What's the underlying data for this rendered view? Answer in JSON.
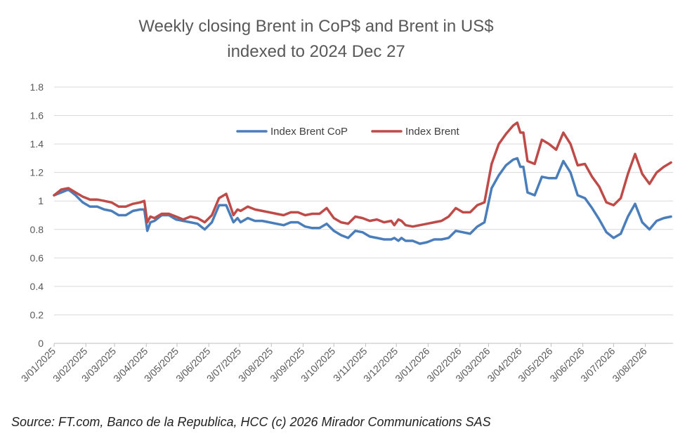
{
  "chart_data": {
    "type": "line",
    "title_lines": [
      "Weekly closing Brent in CoP$ and Brent in US$",
      "indexed to 2024 Dec 27"
    ],
    "xlabel": "",
    "ylabel": "",
    "ylim": [
      0,
      1.8
    ],
    "y_ticks": [
      "0",
      "0.2",
      "0.4",
      "0.6",
      "0.8",
      "1",
      "1.2",
      "1.4",
      "1.6",
      "1.8"
    ],
    "x_tick_labels": [
      "3/01/2025",
      "3/02/2025",
      "3/03/2025",
      "3/04/2025",
      "3/05/2025",
      "3/06/2025",
      "3/07/2025",
      "3/08/2025",
      "3/09/2025",
      "3/10/2025",
      "3/11/2025",
      "3/12/2025",
      "3/01/2026",
      "3/02/2026",
      "3/03/2026",
      "3/04/2026",
      "3/05/2026",
      "3/06/2026",
      "3/07/2026",
      "3/08/2026"
    ],
    "x_range": [
      "2025-01-03",
      "2026-08-30"
    ],
    "grid": "horizontal",
    "legend_position": "top-center",
    "series": [
      {
        "name": "Index Brent CoP",
        "color": "#4a7ebb",
        "points": [
          [
            "2025-01-03",
            1.04
          ],
          [
            "2025-01-10",
            1.06
          ],
          [
            "2025-01-17",
            1.08
          ],
          [
            "2025-01-24",
            1.04
          ],
          [
            "2025-01-31",
            0.99
          ],
          [
            "2025-02-07",
            0.96
          ],
          [
            "2025-02-14",
            0.96
          ],
          [
            "2025-02-21",
            0.94
          ],
          [
            "2025-02-28",
            0.93
          ],
          [
            "2025-03-07",
            0.9
          ],
          [
            "2025-03-14",
            0.9
          ],
          [
            "2025-03-21",
            0.93
          ],
          [
            "2025-03-28",
            0.94
          ],
          [
            "2025-04-01",
            0.94
          ],
          [
            "2025-04-04",
            0.79
          ],
          [
            "2025-04-07",
            0.85
          ],
          [
            "2025-04-11",
            0.86
          ],
          [
            "2025-04-18",
            0.9
          ],
          [
            "2025-04-25",
            0.9
          ],
          [
            "2025-05-02",
            0.87
          ],
          [
            "2025-05-09",
            0.86
          ],
          [
            "2025-05-16",
            0.85
          ],
          [
            "2025-05-23",
            0.84
          ],
          [
            "2025-05-30",
            0.8
          ],
          [
            "2025-06-06",
            0.85
          ],
          [
            "2025-06-13",
            0.97
          ],
          [
            "2025-06-20",
            0.97
          ],
          [
            "2025-06-27",
            0.85
          ],
          [
            "2025-07-01",
            0.88
          ],
          [
            "2025-07-04",
            0.85
          ],
          [
            "2025-07-11",
            0.88
          ],
          [
            "2025-07-18",
            0.86
          ],
          [
            "2025-07-25",
            0.86
          ],
          [
            "2025-08-01",
            0.85
          ],
          [
            "2025-08-08",
            0.84
          ],
          [
            "2025-08-15",
            0.83
          ],
          [
            "2025-08-22",
            0.85
          ],
          [
            "2025-08-29",
            0.85
          ],
          [
            "2025-09-05",
            0.82
          ],
          [
            "2025-09-12",
            0.81
          ],
          [
            "2025-09-19",
            0.81
          ],
          [
            "2025-09-26",
            0.84
          ],
          [
            "2025-10-03",
            0.79
          ],
          [
            "2025-10-10",
            0.76
          ],
          [
            "2025-10-17",
            0.74
          ],
          [
            "2025-10-24",
            0.79
          ],
          [
            "2025-10-31",
            0.78
          ],
          [
            "2025-11-07",
            0.75
          ],
          [
            "2025-11-14",
            0.74
          ],
          [
            "2025-11-21",
            0.73
          ],
          [
            "2025-11-28",
            0.73
          ],
          [
            "2025-12-01",
            0.74
          ],
          [
            "2025-12-05",
            0.72
          ],
          [
            "2025-12-08",
            0.74
          ],
          [
            "2025-12-12",
            0.72
          ],
          [
            "2025-12-19",
            0.72
          ],
          [
            "2025-12-26",
            0.7
          ],
          [
            "2026-01-02",
            0.71
          ],
          [
            "2026-01-09",
            0.73
          ],
          [
            "2026-01-16",
            0.73
          ],
          [
            "2026-01-23",
            0.74
          ],
          [
            "2026-01-30",
            0.79
          ],
          [
            "2026-02-06",
            0.78
          ],
          [
            "2026-02-13",
            0.77
          ],
          [
            "2026-02-20",
            0.82
          ],
          [
            "2026-02-27",
            0.85
          ],
          [
            "2026-03-06",
            1.09
          ],
          [
            "2026-03-13",
            1.18
          ],
          [
            "2026-03-20",
            1.25
          ],
          [
            "2026-03-27",
            1.29
          ],
          [
            "2026-03-31",
            1.3
          ],
          [
            "2026-04-03",
            1.24
          ],
          [
            "2026-04-06",
            1.24
          ],
          [
            "2026-04-10",
            1.06
          ],
          [
            "2026-04-17",
            1.04
          ],
          [
            "2026-04-24",
            1.17
          ],
          [
            "2026-05-01",
            1.16
          ],
          [
            "2026-05-08",
            1.16
          ],
          [
            "2026-05-15",
            1.28
          ],
          [
            "2026-05-22",
            1.2
          ],
          [
            "2026-05-29",
            1.04
          ],
          [
            "2026-06-05",
            1.02
          ],
          [
            "2026-06-12",
            0.95
          ],
          [
            "2026-06-19",
            0.87
          ],
          [
            "2026-06-26",
            0.78
          ],
          [
            "2026-07-03",
            0.74
          ],
          [
            "2026-07-10",
            0.77
          ],
          [
            "2026-07-17",
            0.89
          ],
          [
            "2026-07-24",
            0.98
          ],
          [
            "2026-07-31",
            0.85
          ],
          [
            "2026-08-07",
            0.8
          ],
          [
            "2026-08-14",
            0.86
          ],
          [
            "2026-08-21",
            0.88
          ],
          [
            "2026-08-28",
            0.89
          ]
        ]
      },
      {
        "name": "Index Brent",
        "color": "#be4b48",
        "points": [
          [
            "2025-01-03",
            1.04
          ],
          [
            "2025-01-10",
            1.08
          ],
          [
            "2025-01-17",
            1.09
          ],
          [
            "2025-01-24",
            1.06
          ],
          [
            "2025-01-31",
            1.03
          ],
          [
            "2025-02-07",
            1.01
          ],
          [
            "2025-02-14",
            1.01
          ],
          [
            "2025-02-21",
            1.0
          ],
          [
            "2025-02-28",
            0.99
          ],
          [
            "2025-03-07",
            0.96
          ],
          [
            "2025-03-14",
            0.96
          ],
          [
            "2025-03-21",
            0.98
          ],
          [
            "2025-03-28",
            0.99
          ],
          [
            "2025-04-01",
            1.0
          ],
          [
            "2025-04-04",
            0.85
          ],
          [
            "2025-04-07",
            0.89
          ],
          [
            "2025-04-11",
            0.88
          ],
          [
            "2025-04-18",
            0.91
          ],
          [
            "2025-04-25",
            0.91
          ],
          [
            "2025-05-02",
            0.89
          ],
          [
            "2025-05-09",
            0.87
          ],
          [
            "2025-05-16",
            0.89
          ],
          [
            "2025-05-23",
            0.88
          ],
          [
            "2025-05-30",
            0.85
          ],
          [
            "2025-06-06",
            0.9
          ],
          [
            "2025-06-13",
            1.02
          ],
          [
            "2025-06-20",
            1.05
          ],
          [
            "2025-06-27",
            0.9
          ],
          [
            "2025-07-01",
            0.94
          ],
          [
            "2025-07-04",
            0.93
          ],
          [
            "2025-07-11",
            0.96
          ],
          [
            "2025-07-18",
            0.94
          ],
          [
            "2025-07-25",
            0.93
          ],
          [
            "2025-08-01",
            0.92
          ],
          [
            "2025-08-08",
            0.91
          ],
          [
            "2025-08-15",
            0.9
          ],
          [
            "2025-08-22",
            0.92
          ],
          [
            "2025-08-29",
            0.92
          ],
          [
            "2025-09-05",
            0.9
          ],
          [
            "2025-09-12",
            0.91
          ],
          [
            "2025-09-19",
            0.91
          ],
          [
            "2025-09-26",
            0.95
          ],
          [
            "2025-10-03",
            0.88
          ],
          [
            "2025-10-10",
            0.85
          ],
          [
            "2025-10-17",
            0.84
          ],
          [
            "2025-10-24",
            0.89
          ],
          [
            "2025-10-31",
            0.88
          ],
          [
            "2025-11-07",
            0.86
          ],
          [
            "2025-11-14",
            0.87
          ],
          [
            "2025-11-21",
            0.85
          ],
          [
            "2025-11-28",
            0.86
          ],
          [
            "2025-12-01",
            0.83
          ],
          [
            "2025-12-05",
            0.87
          ],
          [
            "2025-12-08",
            0.86
          ],
          [
            "2025-12-12",
            0.83
          ],
          [
            "2025-12-19",
            0.82
          ],
          [
            "2025-12-26",
            0.83
          ],
          [
            "2026-01-02",
            0.84
          ],
          [
            "2026-01-09",
            0.85
          ],
          [
            "2026-01-16",
            0.86
          ],
          [
            "2026-01-23",
            0.89
          ],
          [
            "2026-01-30",
            0.95
          ],
          [
            "2026-02-06",
            0.92
          ],
          [
            "2026-02-13",
            0.92
          ],
          [
            "2026-02-20",
            0.97
          ],
          [
            "2026-02-27",
            0.99
          ],
          [
            "2026-03-06",
            1.26
          ],
          [
            "2026-03-13",
            1.4
          ],
          [
            "2026-03-20",
            1.47
          ],
          [
            "2026-03-27",
            1.53
          ],
          [
            "2026-03-31",
            1.55
          ],
          [
            "2026-04-03",
            1.48
          ],
          [
            "2026-04-06",
            1.48
          ],
          [
            "2026-04-10",
            1.28
          ],
          [
            "2026-04-17",
            1.26
          ],
          [
            "2026-04-24",
            1.43
          ],
          [
            "2026-05-01",
            1.4
          ],
          [
            "2026-05-08",
            1.36
          ],
          [
            "2026-05-15",
            1.48
          ],
          [
            "2026-05-22",
            1.4
          ],
          [
            "2026-05-29",
            1.25
          ],
          [
            "2026-06-05",
            1.26
          ],
          [
            "2026-06-12",
            1.17
          ],
          [
            "2026-06-19",
            1.1
          ],
          [
            "2026-06-26",
            0.99
          ],
          [
            "2026-07-03",
            0.97
          ],
          [
            "2026-07-10",
            1.02
          ],
          [
            "2026-07-17",
            1.19
          ],
          [
            "2026-07-24",
            1.33
          ],
          [
            "2026-07-31",
            1.19
          ],
          [
            "2026-08-07",
            1.12
          ],
          [
            "2026-08-14",
            1.2
          ],
          [
            "2026-08-21",
            1.24
          ],
          [
            "2026-08-28",
            1.27
          ]
        ]
      }
    ]
  },
  "source_note": "Source: FT.com, Banco de la Republica, HCC (c) 2026 Mirador Communications SAS"
}
